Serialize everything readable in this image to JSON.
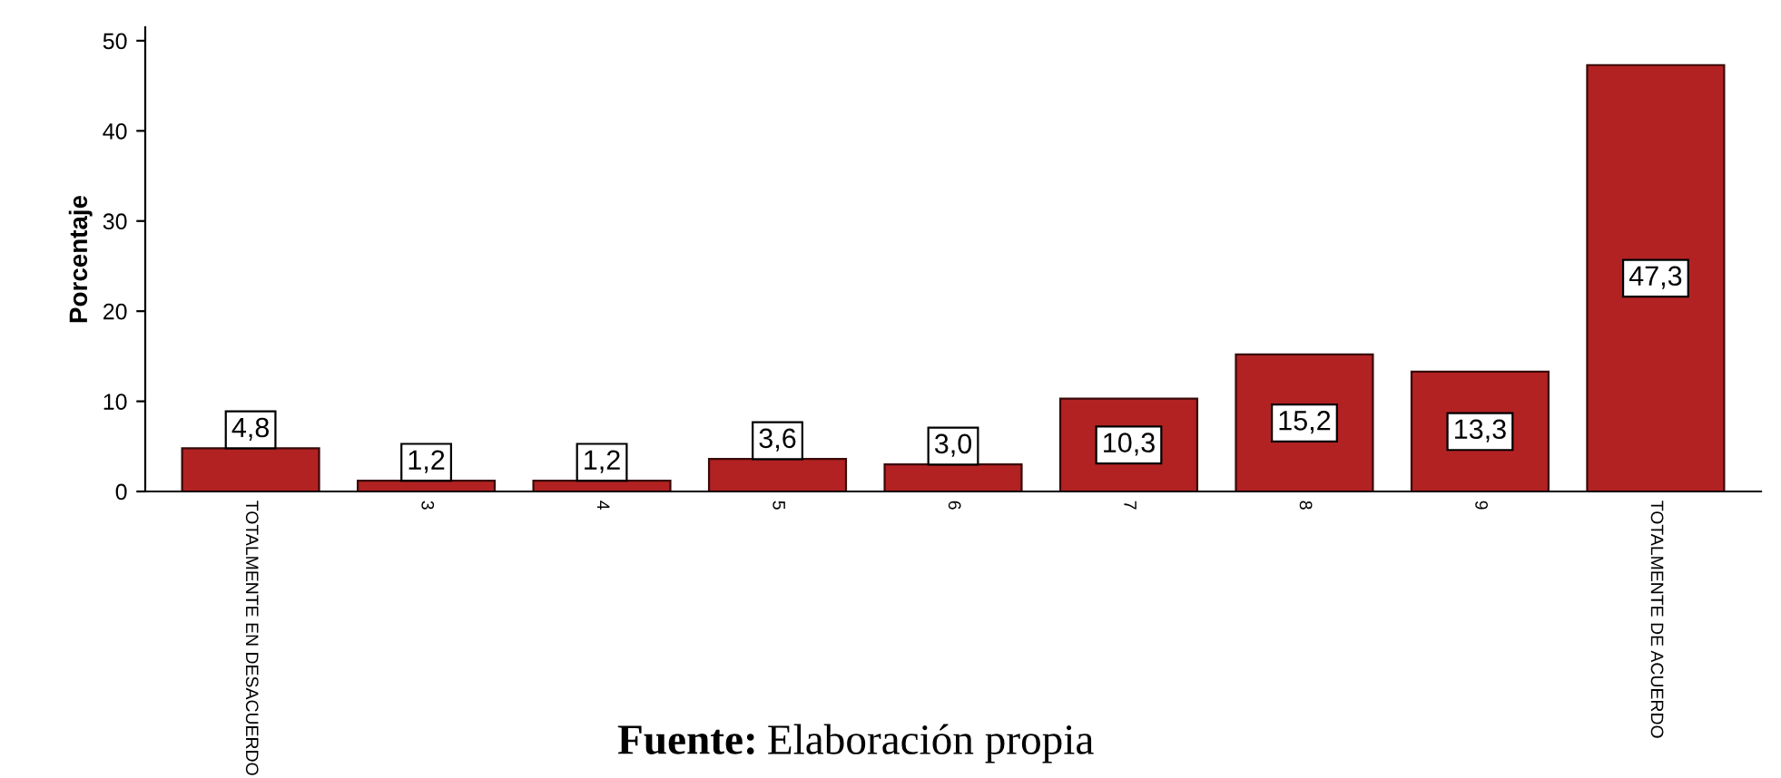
{
  "chart_data": {
    "type": "bar",
    "ylabel": "Porcentaje",
    "categories": [
      "TOTALMENTE EN DESACUERDO",
      "3",
      "4",
      "5",
      "6",
      "7",
      "8",
      "9",
      "TOTALMENTE DE ACUERDO"
    ],
    "values": [
      4.8,
      1.2,
      1.2,
      3.6,
      3.0,
      10.3,
      15.2,
      13.3,
      47.3
    ],
    "value_labels": [
      "4,8",
      "1,2",
      "1,2",
      "3,6",
      "3,0",
      "10,3",
      "15,2",
      "13,3",
      "47,3"
    ],
    "color": "#b22222",
    "ylim": [
      0,
      51.5
    ],
    "yticks": [
      0,
      10,
      20,
      30,
      40,
      50
    ],
    "grid": false,
    "annotations": [
      "Fuente: Elaboración propia"
    ]
  }
}
